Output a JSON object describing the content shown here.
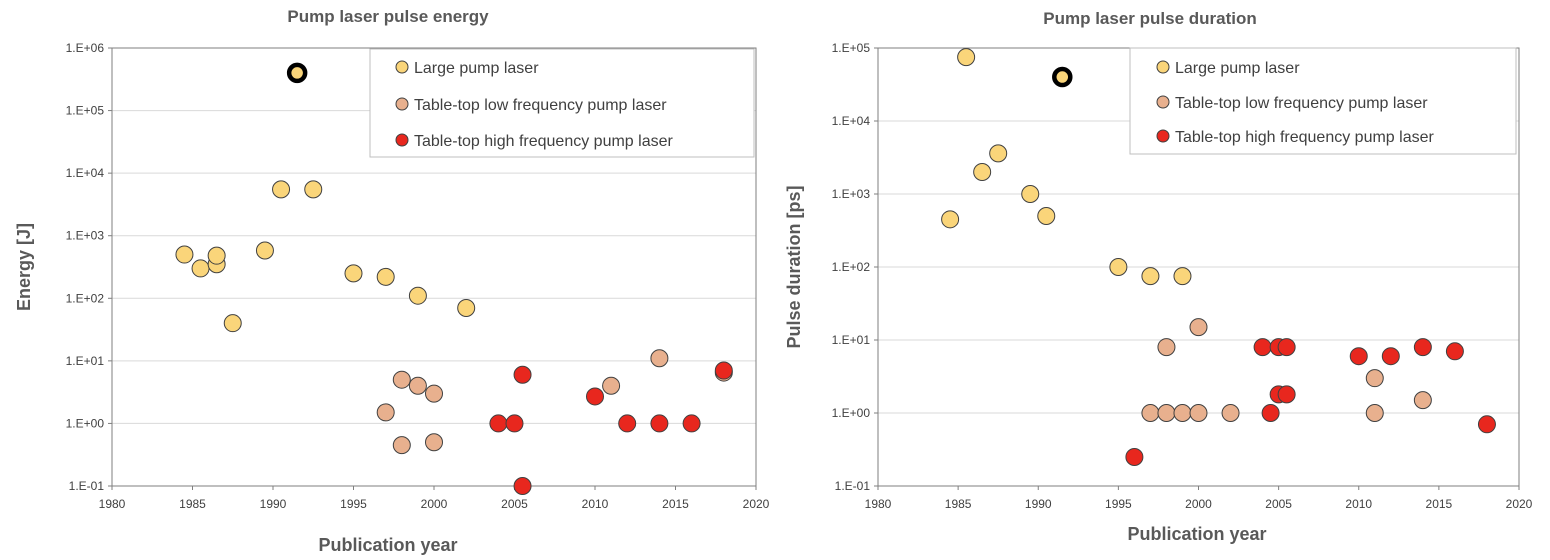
{
  "colors": {
    "large": "#FAD57A",
    "tabletop_low": "#E8B08E",
    "tabletop_high": "#E8271E",
    "highlight_ring": "#000000",
    "grid": "#d9d9d9",
    "axis": "#7f7f7f"
  },
  "chart_data": [
    {
      "type": "scatter",
      "title": "Pump laser  pulse energy",
      "xlabel": "Publication year",
      "ylabel": "Energy [J]",
      "xlim": [
        1980,
        2020
      ],
      "xticks": [
        "1980",
        "1985",
        "1990",
        "1995",
        "2000",
        "2005",
        "2010",
        "2015",
        "2020"
      ],
      "ylim": [
        0.1,
        1000000
      ],
      "yscale": "log",
      "yticks": [
        "1.E-01",
        "1.E+00",
        "1.E+01",
        "1.E+02",
        "1.E+03",
        "1.E+04",
        "1.E+05",
        "1.E+06"
      ],
      "grid": "horizontal",
      "legend_position": "top-right",
      "series": [
        {
          "name": "Large pump laser",
          "color_key": "large",
          "points": [
            [
              1984.5,
              500
            ],
            [
              1985.5,
              300
            ],
            [
              1986.5,
              350
            ],
            [
              1986.5,
              480
            ],
            [
              1987.5,
              40
            ],
            [
              1989.5,
              580
            ],
            [
              1990.5,
              5500
            ],
            [
              1992.5,
              5500
            ],
            [
              1995,
              250
            ],
            [
              1997,
              220
            ],
            [
              1999,
              110
            ],
            [
              2002,
              70
            ]
          ]
        },
        {
          "name": "Table-top low frequency pump laser",
          "color_key": "tabletop_low",
          "points": [
            [
              1997,
              1.5
            ],
            [
              1998,
              5
            ],
            [
              1998,
              0.45
            ],
            [
              1999,
              4
            ],
            [
              2000,
              3
            ],
            [
              2000,
              0.5
            ],
            [
              2011,
              4
            ],
            [
              2014,
              11
            ],
            [
              2018,
              6.5
            ]
          ]
        },
        {
          "name": "Table-top high frequency pump laser",
          "color_key": "tabletop_high",
          "points": [
            [
              2004,
              1
            ],
            [
              2005,
              1
            ],
            [
              2005.5,
              6
            ],
            [
              2005.5,
              0.1
            ],
            [
              2010,
              2.7
            ],
            [
              2012,
              1
            ],
            [
              2014,
              1
            ],
            [
              2016,
              1
            ],
            [
              2018,
              7
            ]
          ]
        }
      ],
      "highlight_point": [
        1991.5,
        400000
      ]
    },
    {
      "type": "scatter",
      "title": "Pump laser pulse  duration",
      "xlabel": "Publication year",
      "ylabel": "Pulse duration [ps]",
      "xlim": [
        1980,
        2020
      ],
      "xticks": [
        "1980",
        "1985",
        "1990",
        "1995",
        "2000",
        "2005",
        "2010",
        "2015",
        "2020"
      ],
      "ylim": [
        0.1,
        100000
      ],
      "yscale": "log",
      "yticks": [
        "1.E-01",
        "1.E+00",
        "1.E+01",
        "1.E+02",
        "1.E+03",
        "1.E+04",
        "1.E+05"
      ],
      "grid": "horizontal",
      "legend_position": "top-right",
      "series": [
        {
          "name": "Large pump laser",
          "color_key": "large",
          "points": [
            [
              1984.5,
              450
            ],
            [
              1985.5,
              75000
            ],
            [
              1986.5,
              2000
            ],
            [
              1987.5,
              3600
            ],
            [
              1989.5,
              1000
            ],
            [
              1990.5,
              500
            ],
            [
              1995,
              100
            ],
            [
              1997,
              75
            ],
            [
              1999,
              75
            ]
          ]
        },
        {
          "name": "Table-top low frequency pump laser",
          "color_key": "tabletop_low",
          "points": [
            [
              1997,
              1
            ],
            [
              1998,
              1
            ],
            [
              1998,
              8
            ],
            [
              1999,
              1
            ],
            [
              2000,
              1
            ],
            [
              2000,
              15
            ],
            [
              2002,
              1
            ],
            [
              2011,
              1
            ],
            [
              2011,
              3
            ],
            [
              2014,
              1.5
            ]
          ]
        },
        {
          "name": "Table-top high frequency pump laser",
          "color_key": "tabletop_high",
          "points": [
            [
              1996,
              0.25
            ],
            [
              2004,
              8
            ],
            [
              2004.5,
              1
            ],
            [
              2005,
              8
            ],
            [
              2005,
              1.8
            ],
            [
              2005.5,
              8
            ],
            [
              2005.5,
              1.8
            ],
            [
              2010,
              6
            ],
            [
              2012,
              6
            ],
            [
              2014,
              8
            ],
            [
              2016,
              7
            ],
            [
              2018,
              0.7
            ]
          ]
        }
      ],
      "highlight_point": [
        1991.5,
        40000
      ]
    }
  ]
}
